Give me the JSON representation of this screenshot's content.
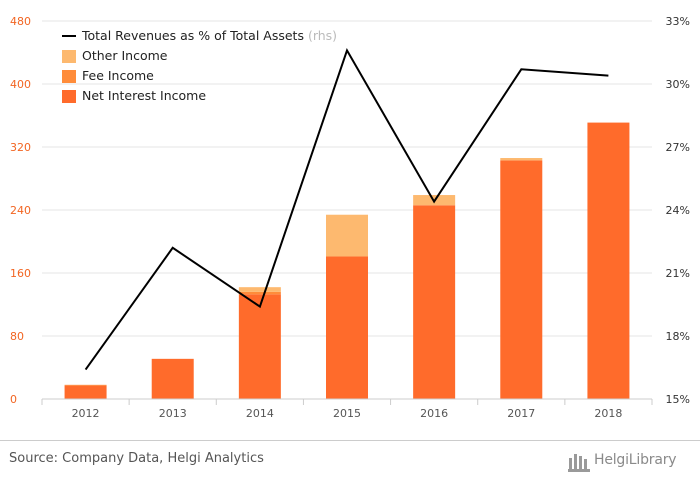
{
  "chart_data": {
    "type": "bar",
    "categories": [
      "2012",
      "2013",
      "2014",
      "2015",
      "2016",
      "2017",
      "2018"
    ],
    "series": [
      {
        "name": "Net Interest Income",
        "type": "stacked-bar",
        "axis": "left",
        "color": "#ff6b2b",
        "values": [
          17,
          51,
          133,
          181,
          246,
          303,
          351
        ]
      },
      {
        "name": "Fee Income",
        "type": "stacked-bar",
        "axis": "left",
        "color": "#ff8c3a",
        "values": [
          1,
          0,
          3,
          0,
          0,
          0,
          0
        ]
      },
      {
        "name": "Other Income",
        "type": "stacked-bar",
        "axis": "left",
        "color": "#fdb96f",
        "values": [
          0,
          0,
          6,
          53,
          13,
          3,
          0
        ]
      },
      {
        "name": "Total Revenues as % of Total Assets",
        "name_suffix": "(rhs)",
        "type": "line",
        "axis": "right",
        "color": "#000000",
        "values": [
          16.4,
          22.2,
          19.4,
          31.6,
          24.4,
          30.7,
          30.4
        ]
      }
    ],
    "y_left": {
      "min": 0,
      "max": 480,
      "ticks": [
        "0",
        "80",
        "160",
        "240",
        "320",
        "400",
        "480"
      ],
      "tick_color": "#f26522"
    },
    "y_right": {
      "min": 15,
      "max": 33,
      "ticks": [
        "15%",
        "18%",
        "21%",
        "24%",
        "27%",
        "30%",
        "33%"
      ]
    },
    "grid": true,
    "legend_position": "top-left"
  },
  "footer": {
    "source": "Source: Company Data, Helgi Analytics",
    "logo_text": "HelgiLibrary"
  }
}
